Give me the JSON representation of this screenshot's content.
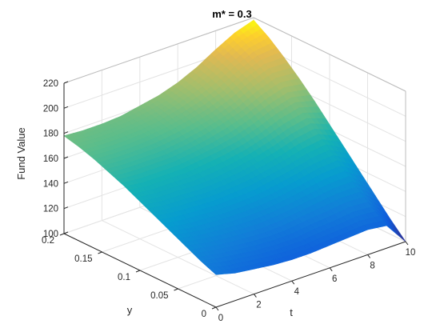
{
  "chart_data": {
    "type": "surface",
    "title": "m* = 0.3",
    "xlabel": "t",
    "ylabel": "y",
    "zlabel": "Fund Value",
    "xlim": [
      0,
      10
    ],
    "ylim": [
      0,
      0.2
    ],
    "zlim": [
      100,
      220
    ],
    "x_ticks": [
      0,
      2,
      4,
      6,
      8,
      10
    ],
    "y_ticks": [
      0,
      0.05,
      0.1,
      0.15,
      0.2
    ],
    "z_ticks": [
      100,
      120,
      140,
      160,
      180,
      200,
      220
    ],
    "x_tick_labels": [
      "0",
      "2",
      "4",
      "6",
      "8",
      "10"
    ],
    "y_tick_labels": [
      "0",
      "0.05",
      "0.1",
      "0.15",
      "0.2"
    ],
    "z_tick_labels": [
      "100",
      "120",
      "140",
      "160",
      "180",
      "200",
      "220"
    ],
    "grid": true,
    "colormap": "parula",
    "surface": {
      "t": [
        0,
        1,
        2,
        3,
        4,
        5,
        6,
        7,
        8,
        9,
        10
      ],
      "y": [
        0,
        0.02,
        0.04,
        0.06,
        0.08,
        0.1,
        0.12,
        0.14,
        0.16,
        0.18,
        0.2
      ],
      "z": [
        [
          126,
          131,
          137,
          143,
          149,
          155,
          161,
          166,
          171,
          175,
          178
        ],
        [
          122,
          128,
          134,
          140,
          147,
          153,
          159,
          165,
          170,
          174,
          177
        ],
        [
          120,
          126,
          132,
          139,
          146,
          153,
          159,
          165,
          170,
          174,
          177
        ],
        [
          118,
          124,
          131,
          138,
          145,
          152,
          159,
          165,
          171,
          175,
          178
        ],
        [
          117,
          123,
          130,
          138,
          146,
          153,
          161,
          167,
          173,
          177,
          181
        ],
        [
          117,
          123,
          131,
          139,
          147,
          155,
          163,
          170,
          176,
          181,
          184
        ],
        [
          118,
          125,
          133,
          141,
          150,
          158,
          166,
          174,
          180,
          186,
          189
        ],
        [
          119,
          126,
          135,
          144,
          153,
          162,
          171,
          179,
          186,
          192,
          196
        ],
        [
          120,
          128,
          137,
          147,
          157,
          167,
          177,
          186,
          194,
          200,
          205
        ],
        [
          118,
          127,
          137,
          148,
          159,
          170,
          181,
          191,
          200,
          207,
          213
        ],
        [
          100,
          112,
          125,
          138,
          151,
          164,
          177,
          189,
          200,
          210,
          218
        ]
      ]
    }
  }
}
